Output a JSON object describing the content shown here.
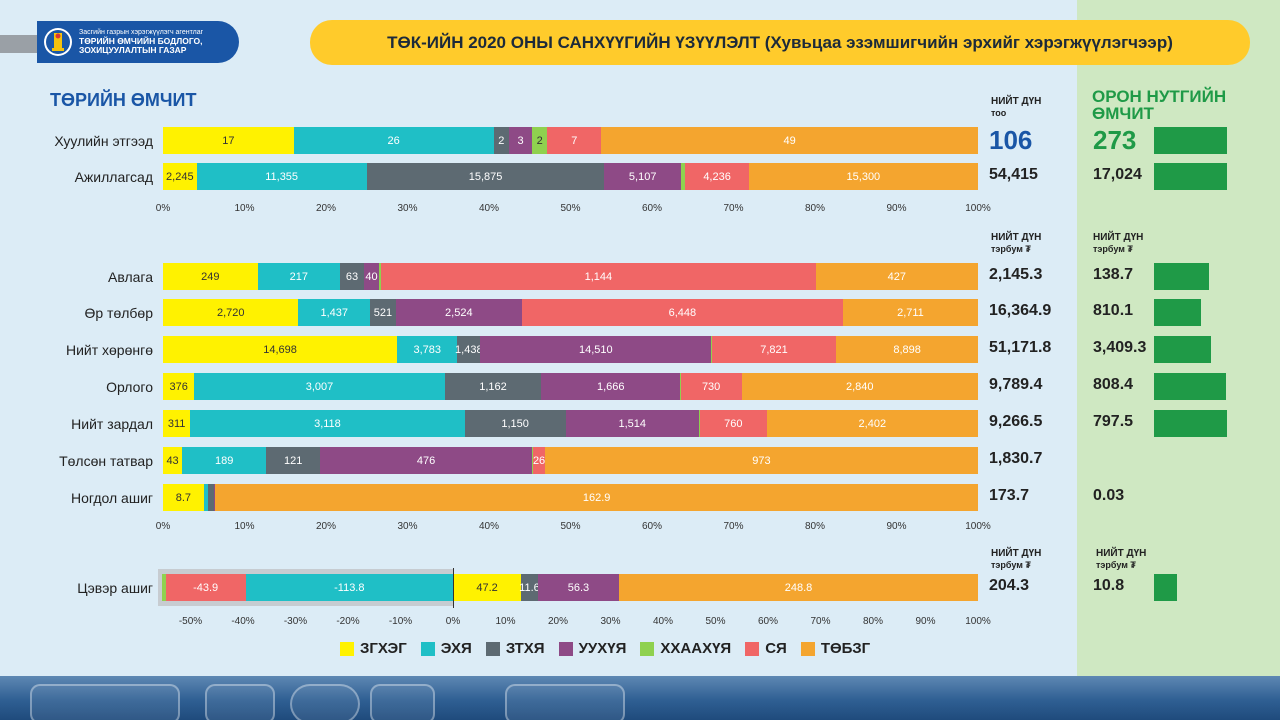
{
  "header": {
    "agency_small": "Засгийн газрын хэрэгжүүлэгч агентлаг",
    "agency_line1": "ТӨРИЙН ӨМЧИЙН БОДЛОГО,",
    "agency_line2": "ЗОХИЦУУЛАЛТЫН ГАЗАР",
    "title": "ТӨК-ИЙН 2020 ОНЫ САНХҮҮГИЙН ҮЗҮҮЛЭЛТ (Хувьцаа эзэмшигчийн эрхийг хэрэгжүүлэгчээр)"
  },
  "colors": {
    "ЗГХЭГ": "#fff200",
    "ЭХЯ": "#1fbfc6",
    "ЗТХЯ": "#5d6a72",
    "УУХҮЯ": "#8e4a86",
    "ХХААХҮЯ": "#8fd14f",
    "СЯ": "#f06666",
    "ТӨБЗГ": "#f4a52f",
    "brand_blue": "#1a56a6",
    "local_green": "#1f9a47"
  },
  "labels": {
    "state_title": "ТӨРИЙН ӨМЧИТ",
    "local_title": "ОРОН НУТГИЙН ӨМЧИТ",
    "total_head": "НИЙТ ДҮН",
    "unit_count": "тоо",
    "unit_money": "тэрбум ₮"
  },
  "chart_data": [
    {
      "type": "bar",
      "orientation": "horizontal",
      "stacked": "percent",
      "series_names": [
        "ЗГХЭГ",
        "ЭХЯ",
        "ЗТХЯ",
        "УУХҮЯ",
        "ХХААХҮЯ",
        "СЯ",
        "ТӨБЗГ"
      ],
      "x_ticks": [
        "0%",
        "10%",
        "20%",
        "30%",
        "40%",
        "50%",
        "60%",
        "70%",
        "80%",
        "90%",
        "100%"
      ],
      "rows": [
        {
          "label": "Хуулийн этгээд",
          "values": [
            17,
            26,
            2,
            3,
            2,
            7,
            49
          ],
          "labels": [
            "17",
            "26",
            "2",
            "3",
            "2",
            "7",
            "49"
          ],
          "total": "106",
          "local_total": "273",
          "local_share": 1.0
        },
        {
          "label": "Ажиллагсад",
          "values": [
            2245,
            11355,
            15875,
            5107,
            297,
            4236,
            15300
          ],
          "labels": [
            "2,245",
            "11,355",
            "15,875",
            "5,107",
            "",
            "4,236",
            "15,300"
          ],
          "total": "54,415",
          "local_total": "17,024",
          "local_share": 1.0
        }
      ]
    },
    {
      "type": "bar",
      "orientation": "horizontal",
      "stacked": "percent",
      "series_names": [
        "ЗГХЭГ",
        "ЭХЯ",
        "ЗТХЯ",
        "УУХҮЯ",
        "ХХААХҮЯ",
        "СЯ",
        "ТӨБЗГ"
      ],
      "x_ticks": [
        "0%",
        "10%",
        "20%",
        "30%",
        "40%",
        "50%",
        "60%",
        "70%",
        "80%",
        "90%",
        "100%"
      ],
      "rows": [
        {
          "label": "Авлага",
          "values": [
            249,
            217,
            63,
            40,
            5,
            1144,
            427
          ],
          "labels": [
            "249",
            "217",
            "63",
            "40",
            "",
            "1,144",
            "427"
          ],
          "total": "2,145.3",
          "local_total": "138.7",
          "local_share": 0.76
        },
        {
          "label": "Өр төлбөр",
          "values": [
            2720,
            1437,
            521,
            2524,
            4,
            6448,
            2711
          ],
          "labels": [
            "2,720",
            "1,437",
            "521",
            "2,524",
            "",
            "6,448",
            "2,711"
          ],
          "total": "16,364.9",
          "local_total": "810.1",
          "local_share": 0.65
        },
        {
          "label": "Нийт хөрөнгө",
          "values": [
            14698,
            3783,
            1438,
            14510,
            23,
            7821,
            8898
          ],
          "labels": [
            "14,698",
            "3,783",
            "1,438",
            "14,510",
            "",
            "7,821",
            "8,898"
          ],
          "total": "51,171.8",
          "local_total": "3,409.3",
          "local_share": 0.78
        },
        {
          "label": "Орлого",
          "values": [
            376,
            3007,
            1162,
            1666,
            8,
            730,
            2840
          ],
          "labels": [
            "376",
            "3,007",
            "1,162",
            "1,666",
            "",
            "730",
            "2,840"
          ],
          "total": "9,789.4",
          "local_total": "808.4",
          "local_share": 0.99
        },
        {
          "label": "Нийт зардал",
          "values": [
            311,
            3118,
            1150,
            1514,
            12,
            760,
            2402
          ],
          "labels": [
            "311",
            "3,118",
            "1,150",
            "1,514",
            "",
            "760",
            "2,402"
          ],
          "total": "9,266.5",
          "local_total": "797.5",
          "local_share": 1.0
        },
        {
          "label": "Төлсөн татвар",
          "values": [
            43,
            189,
            121,
            476,
            3,
            26,
            973
          ],
          "labels": [
            "43",
            "189",
            "121",
            "476",
            "",
            "26",
            "973"
          ],
          "total": "1,830.7",
          "local_total": "",
          "local_share": 0
        },
        {
          "label": "Ногдол ашиг",
          "values": [
            8.7,
            0.9,
            1.3,
            0.2,
            0,
            0.1,
            162.9
          ],
          "labels": [
            "8.7",
            "",
            "",
            "",
            "",
            "",
            "162.9"
          ],
          "total": "173.7",
          "local_total": "0.03",
          "local_share": 0
        }
      ]
    },
    {
      "type": "bar",
      "orientation": "horizontal",
      "stacked": "percent",
      "series_names": [
        "ЗГХЭГ",
        "ЭХЯ",
        "ЗТХЯ",
        "УУХҮЯ",
        "ХХААХҮЯ",
        "СЯ",
        "ТӨБЗГ"
      ],
      "x_ticks": [
        "-50%",
        "-40%",
        "-30%",
        "-20%",
        "-10%",
        "0%",
        "10%",
        "20%",
        "30%",
        "40%",
        "50%",
        "60%",
        "70%",
        "80%",
        "90%",
        "100%"
      ],
      "xlim": [
        -0.556,
        1.0
      ],
      "rows": [
        {
          "label": "Цэвэр ашиг",
          "negative": [
            {
              "series": "ХХААХҮЯ",
              "value": -2.0,
              "label": ""
            },
            {
              "series": "СЯ",
              "value": -43.9,
              "label": "-43.9"
            },
            {
              "series": "ЭХЯ",
              "value": -113.8,
              "label": "-113.8"
            }
          ],
          "positive": [
            {
              "series": "ЗГХЭГ",
              "value": 47.2,
              "label": "47.2"
            },
            {
              "series": "ЗТХЯ",
              "value": 11.6,
              "label": "11.6"
            },
            {
              "series": "УУХҮЯ",
              "value": 56.3,
              "label": "56.3"
            },
            {
              "series": "ТӨБЗГ",
              "value": 248.8,
              "label": "248.8"
            }
          ],
          "total": "204.3",
          "local_total": "10.8",
          "local_share": 0.32
        }
      ]
    }
  ],
  "legend": [
    "ЗГХЭГ",
    "ЭХЯ",
    "ЗТХЯ",
    "УУХҮЯ",
    "ХХААХҮЯ",
    "СЯ",
    "ТӨБЗГ"
  ]
}
